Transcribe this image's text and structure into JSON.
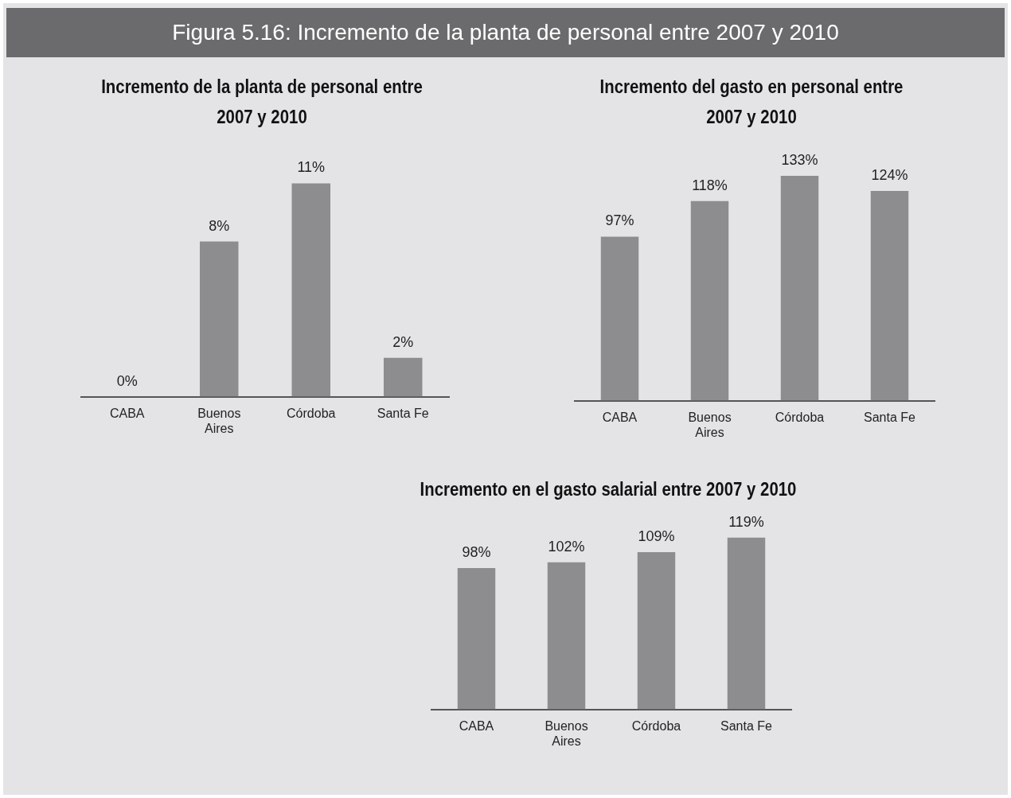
{
  "chart_data": [
    {
      "type": "other",
      "title": "Figura 5.16: Incremento de la planta de personal entre 2007 y 2010"
    },
    {
      "type": "bar",
      "title": "Incremento de la planta de personal entre 2007 y 2010",
      "categories": [
        "CABA",
        "Buenos Aires",
        "Córdoba",
        "Santa Fe"
      ],
      "values": [
        0,
        8,
        11,
        2
      ],
      "value_labels": [
        "0%",
        "8%",
        "11%",
        "2%"
      ],
      "color": "#8d8d90",
      "grid": false,
      "tick_labels": "x"
    },
    {
      "type": "bar",
      "title": "Incremento del gasto en personal entre 2007 y 2010",
      "categories": [
        "CABA",
        "Buenos Aires",
        "Córdoba",
        "Santa Fe"
      ],
      "values": [
        97,
        118,
        133,
        124
      ],
      "value_labels": [
        "97%",
        "118%",
        "133%",
        "124%"
      ],
      "color": "#8d8d90",
      "grid": false,
      "tick_labels": "x"
    },
    {
      "type": "bar",
      "title": "Incremento en el gasto salarial entre 2007 y 2010",
      "categories": [
        "CABA",
        "Buenos Aires",
        "Córdoba",
        "Santa Fe"
      ],
      "values": [
        98,
        102,
        109,
        119
      ],
      "value_labels": [
        "98%",
        "102%",
        "109%",
        "119%"
      ],
      "color": "#8d8d90",
      "grid": false,
      "tick_labels": "x"
    }
  ]
}
